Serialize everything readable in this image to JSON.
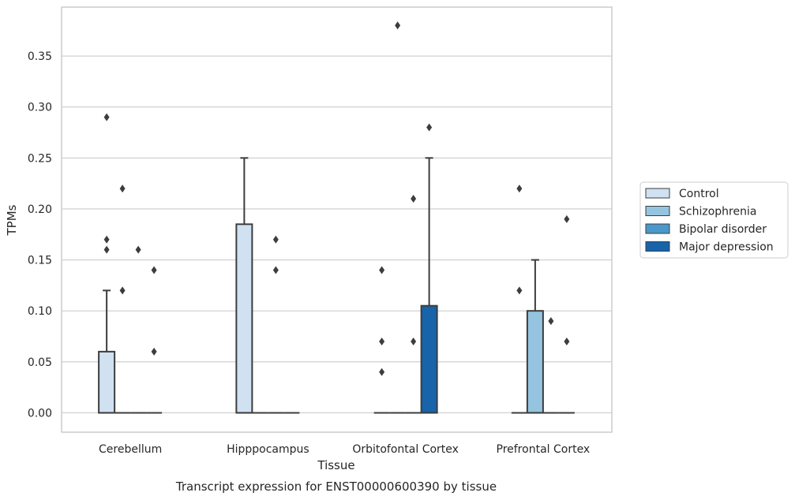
{
  "chart_data": {
    "type": "box",
    "title": "",
    "caption": "Transcript expression for ENST00000600390 by tissue",
    "xlabel": "Tissue",
    "ylabel": "TPMs",
    "ylim": [
      -0.019,
      0.398
    ],
    "yticks": [
      "0.00",
      "0.05",
      "0.10",
      "0.15",
      "0.20",
      "0.25",
      "0.30",
      "0.35"
    ],
    "grid": "horizontal",
    "legend_position": "right",
    "categories": [
      "Cerebellum",
      "Hipppocampus",
      "Orbitofontal Cortex",
      "Prefrontal Cortex"
    ],
    "series": [
      {
        "name": "Control",
        "color": "#d0e1f2"
      },
      {
        "name": "Schizophrenia",
        "color": "#94c4df"
      },
      {
        "name": "Bipolar disorder",
        "color": "#4a98c9"
      },
      {
        "name": "Major depression",
        "color": "#1764ab"
      }
    ],
    "boxes": [
      {
        "category": 0,
        "series": 0,
        "q1": 0.0,
        "median": 0.0,
        "q3": 0.06,
        "whisker_low": 0.0,
        "whisker_high": 0.12,
        "outliers": [
          0.29,
          0.17,
          0.16
        ]
      },
      {
        "category": 0,
        "series": 1,
        "q1": 0.0,
        "median": 0.0,
        "q3": 0.0,
        "whisker_low": 0.0,
        "whisker_high": 0.0,
        "outliers": [
          0.22,
          0.12
        ]
      },
      {
        "category": 0,
        "series": 2,
        "q1": 0.0,
        "median": 0.0,
        "q3": 0.0,
        "whisker_low": 0.0,
        "whisker_high": 0.0,
        "outliers": [
          0.16
        ]
      },
      {
        "category": 0,
        "series": 3,
        "q1": 0.0,
        "median": 0.0,
        "q3": 0.0,
        "whisker_low": 0.0,
        "whisker_high": 0.0,
        "outliers": [
          0.14,
          0.06
        ]
      },
      {
        "category": 1,
        "series": 0,
        "q1": 0.0,
        "median": 0.0,
        "q3": 0.185,
        "whisker_low": 0.0,
        "whisker_high": 0.25,
        "outliers": []
      },
      {
        "category": 1,
        "series": 1,
        "q1": 0.0,
        "median": 0.0,
        "q3": 0.0,
        "whisker_low": 0.0,
        "whisker_high": 0.0,
        "outliers": []
      },
      {
        "category": 1,
        "series": 2,
        "q1": 0.0,
        "median": 0.0,
        "q3": 0.0,
        "whisker_low": 0.0,
        "whisker_high": 0.0,
        "outliers": [
          0.17,
          0.14
        ]
      },
      {
        "category": 1,
        "series": 3,
        "q1": 0.0,
        "median": 0.0,
        "q3": 0.0,
        "whisker_low": 0.0,
        "whisker_high": 0.0,
        "outliers": []
      },
      {
        "category": 2,
        "series": 0,
        "q1": 0.0,
        "median": 0.0,
        "q3": 0.0,
        "whisker_low": 0.0,
        "whisker_high": 0.0,
        "outliers": [
          0.14,
          0.07,
          0.04
        ]
      },
      {
        "category": 2,
        "series": 1,
        "q1": 0.0,
        "median": 0.0,
        "q3": 0.0,
        "whisker_low": 0.0,
        "whisker_high": 0.0,
        "outliers": [
          0.38
        ]
      },
      {
        "category": 2,
        "series": 2,
        "q1": 0.0,
        "median": 0.0,
        "q3": 0.0,
        "whisker_low": 0.0,
        "whisker_high": 0.0,
        "outliers": [
          0.21,
          0.07
        ]
      },
      {
        "category": 2,
        "series": 3,
        "q1": 0.0,
        "median": 0.0,
        "q3": 0.105,
        "whisker_low": 0.0,
        "whisker_high": 0.25,
        "outliers": [
          0.28
        ]
      },
      {
        "category": 3,
        "series": 0,
        "q1": 0.0,
        "median": 0.0,
        "q3": 0.0,
        "whisker_low": 0.0,
        "whisker_high": 0.0,
        "outliers": [
          0.22,
          0.12
        ]
      },
      {
        "category": 3,
        "series": 1,
        "q1": 0.0,
        "median": 0.0,
        "q3": 0.1,
        "whisker_low": 0.0,
        "whisker_high": 0.15,
        "outliers": []
      },
      {
        "category": 3,
        "series": 2,
        "q1": 0.0,
        "median": 0.0,
        "q3": 0.0,
        "whisker_low": 0.0,
        "whisker_high": 0.0,
        "outliers": [
          0.09
        ]
      },
      {
        "category": 3,
        "series": 3,
        "q1": 0.0,
        "median": 0.0,
        "q3": 0.0,
        "whisker_low": 0.0,
        "whisker_high": 0.0,
        "outliers": [
          0.19,
          0.07
        ]
      }
    ]
  }
}
